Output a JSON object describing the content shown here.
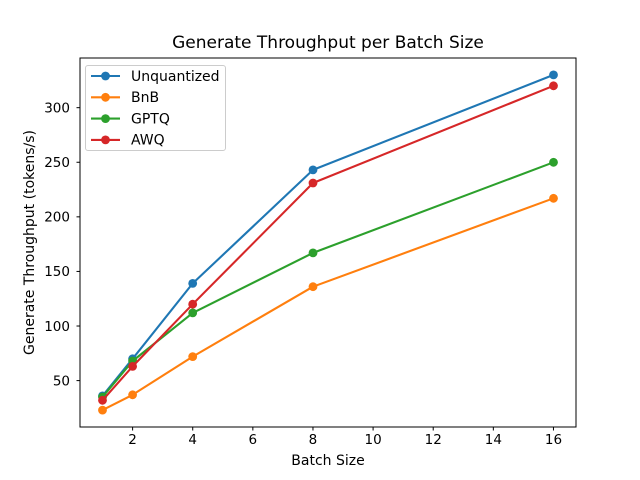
{
  "chart_data": {
    "type": "line",
    "title": "Generate Throughput per Batch Size",
    "xlabel": "Batch Size",
    "ylabel": "Generate Throughput (tokens/s)",
    "x": [
      1,
      2,
      4,
      8,
      16
    ],
    "series": [
      {
        "name": "Unquantized",
        "color": "#1f77b4",
        "values": [
          36,
          70,
          139,
          243,
          330
        ]
      },
      {
        "name": "BnB",
        "color": "#ff7f0e",
        "values": [
          23,
          37,
          72,
          136,
          217
        ]
      },
      {
        "name": "GPTQ",
        "color": "#2ca02c",
        "values": [
          35,
          68,
          112,
          167,
          250
        ]
      },
      {
        "name": "AWQ",
        "color": "#d62728",
        "values": [
          32,
          63,
          120,
          231,
          320
        ]
      }
    ],
    "xlim": [
      0.25,
      16.75
    ],
    "ylim": [
      7.5,
      345.5
    ],
    "xticks": [
      2,
      4,
      6,
      8,
      10,
      12,
      14,
      16
    ],
    "yticks": [
      50,
      100,
      150,
      200,
      250,
      300
    ],
    "grid": false,
    "marker": "o",
    "legend_position": "upper left",
    "background_color": "#ffffff",
    "frame_color": "#000000",
    "legend_border_color": "#cccccc",
    "legend_fill_color": "#ffffff"
  }
}
